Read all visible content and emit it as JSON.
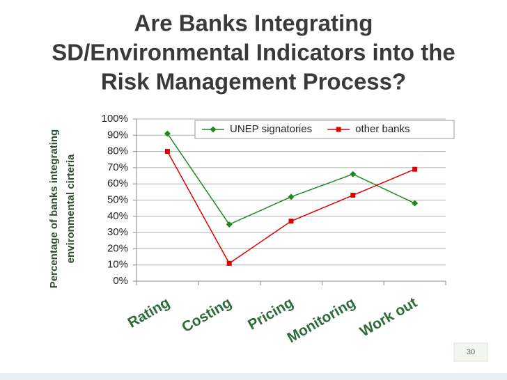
{
  "slide_number": "30",
  "chart_data": {
    "type": "line",
    "title": [
      "Are Banks Integrating",
      "SD/Environmental Indicators into the",
      "Risk Management Process?"
    ],
    "y_label": [
      "Percentage of banks integrating",
      "environmental cirteria"
    ],
    "categories": [
      "Rating",
      "Costing",
      "Pricing",
      "Monitoring",
      "Work out"
    ],
    "series": [
      {
        "name": "UNEP signatories",
        "color": "#1e8a1e",
        "marker": "diamond",
        "values": [
          91,
          35,
          52,
          66,
          48
        ]
      },
      {
        "name": "other banks",
        "color": "#e00000",
        "marker": "square",
        "values": [
          80,
          11,
          37,
          53,
          69
        ]
      }
    ],
    "ylim": [
      0,
      100
    ],
    "yticks": [
      {
        "value": 0,
        "label": "0%"
      },
      {
        "value": 10,
        "label": "10%"
      },
      {
        "value": 20,
        "label": "20%"
      },
      {
        "value": 30,
        "label": "30%"
      },
      {
        "value": 40,
        "label": "40%"
      },
      {
        "value": 50,
        "label": "50%"
      },
      {
        "value": 60,
        "label": "60%"
      },
      {
        "value": 70,
        "label": "70%"
      },
      {
        "value": 80,
        "label": "80%"
      },
      {
        "value": 90,
        "label": "90%"
      },
      {
        "value": 100,
        "label": "100%"
      }
    ],
    "grid": true,
    "legend": "top-right"
  }
}
